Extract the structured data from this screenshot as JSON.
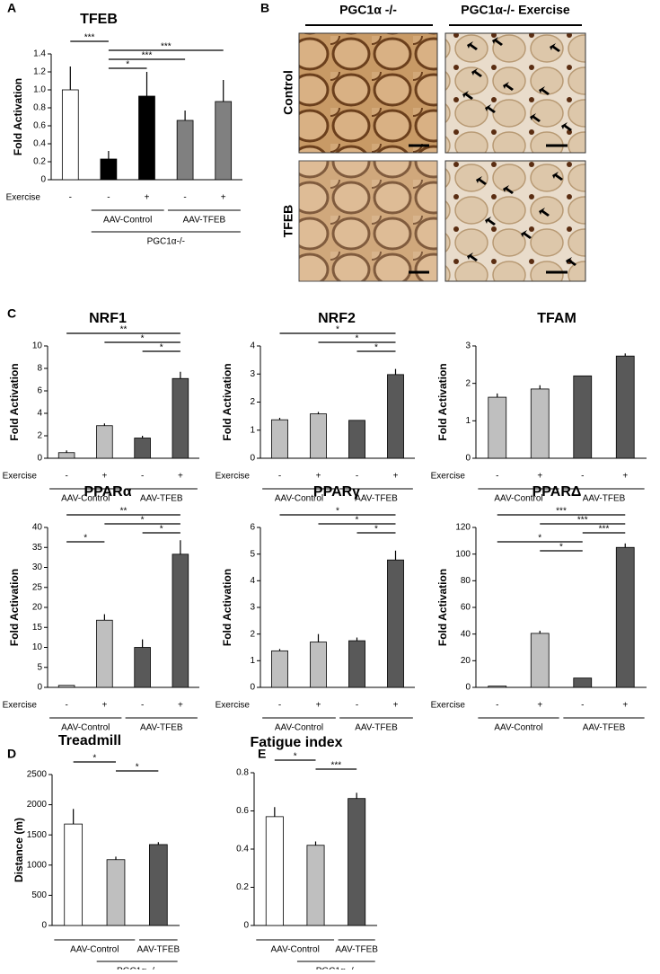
{
  "panel_labels": [
    "A",
    "B",
    "C",
    "D",
    "E"
  ],
  "panel_b": {
    "columns": [
      "PGC1α -/-",
      "PGC1α-/- Exercise"
    ],
    "rows": [
      "Control",
      "TFEB"
    ]
  },
  "chart_data": [
    {
      "type": "bar",
      "title": "TFEB",
      "y_label": "Fold Activation",
      "row_label": "Exercise",
      "categories": [
        "-",
        "-",
        "+",
        "-",
        "+"
      ],
      "values": [
        1.0,
        0.23,
        0.93,
        0.66,
        0.87
      ],
      "errors": [
        0.26,
        0.09,
        0.27,
        0.11,
        0.24
      ],
      "colors": [
        "#ffffff",
        "#000000",
        "#000000",
        "#808080",
        "#808080"
      ],
      "ylim": [
        0,
        1.4
      ],
      "yticks": [
        0,
        0.2,
        0.4,
        0.6,
        0.8,
        {
          "value": 1,
          "label": "1.0"
        },
        1.2,
        1.4
      ],
      "groups": [
        {
          "label": "AAV-Control",
          "span": [
            1,
            2
          ],
          "level": 1
        },
        {
          "label": "AAV-TFEB",
          "span": [
            3,
            4
          ],
          "level": 1
        },
        {
          "label": "PGC1α-/-",
          "span": [
            1,
            4
          ],
          "level": 2
        }
      ],
      "significance": [
        {
          "label": "***",
          "span": [
            0,
            1
          ]
        },
        {
          "label": "***",
          "span": [
            1,
            4
          ]
        },
        {
          "label": "***",
          "span": [
            1,
            3
          ]
        },
        {
          "label": "*",
          "span": [
            1,
            2
          ]
        }
      ]
    },
    {
      "type": "bar",
      "title": "NRF1",
      "y_label": "Fold Activation",
      "row_label": "Exercise",
      "categories": [
        "-",
        "+",
        "-",
        "+"
      ],
      "values": [
        0.5,
        2.9,
        1.8,
        7.1
      ],
      "errors": [
        0.2,
        0.2,
        0.2,
        0.6
      ],
      "colors": [
        "#bfbfbf",
        "#bfbfbf",
        "#595959",
        "#595959"
      ],
      "ylim": [
        0,
        10
      ],
      "yticks": [
        0,
        2,
        4,
        6,
        8,
        10
      ],
      "groups": [
        {
          "label": "AAV-Control",
          "span": [
            0,
            1
          ],
          "level": 1
        },
        {
          "label": "AAV-TFEB",
          "span": [
            2,
            3
          ],
          "level": 1
        }
      ],
      "significance": [
        {
          "label": "**",
          "span": [
            0,
            3
          ]
        },
        {
          "label": "*",
          "span": [
            1,
            3
          ]
        },
        {
          "label": "*",
          "span": [
            2,
            3
          ]
        }
      ]
    },
    {
      "type": "bar",
      "title": "NRF2",
      "y_label": "Fold Activation",
      "row_label": "Exercise",
      "categories": [
        "-",
        "+",
        "-",
        "+"
      ],
      "values": [
        1.37,
        1.58,
        1.35,
        2.98
      ],
      "errors": [
        0.07,
        0.07,
        0,
        0.2
      ],
      "colors": [
        "#bfbfbf",
        "#bfbfbf",
        "#595959",
        "#595959"
      ],
      "ylim": [
        0,
        4
      ],
      "yticks": [
        0,
        1,
        2,
        3,
        4
      ],
      "groups": [
        {
          "label": "AAV-Control",
          "span": [
            0,
            1
          ],
          "level": 1
        },
        {
          "label": "AAV-TFEB",
          "span": [
            2,
            3
          ],
          "level": 1
        }
      ],
      "significance": [
        {
          "label": "*",
          "span": [
            0,
            3
          ]
        },
        {
          "label": "*",
          "span": [
            1,
            3
          ]
        },
        {
          "label": "*",
          "span": [
            2,
            3
          ]
        }
      ]
    },
    {
      "type": "bar",
      "title": "TFAM",
      "y_label": "Fold Activation",
      "row_label": "Exercise",
      "categories": [
        "-",
        "+",
        "-",
        "+"
      ],
      "values": [
        1.63,
        1.85,
        2.2,
        2.73
      ],
      "errors": [
        0.1,
        0.1,
        0,
        0.07
      ],
      "colors": [
        "#bfbfbf",
        "#bfbfbf",
        "#595959",
        "#595959"
      ],
      "ylim": [
        0,
        3
      ],
      "yticks": [
        0,
        1,
        2,
        3
      ],
      "groups": [
        {
          "label": "AAV-Control",
          "span": [
            0,
            1
          ],
          "level": 1
        },
        {
          "label": "AAV-TFEB",
          "span": [
            2,
            3
          ],
          "level": 1
        }
      ],
      "significance": []
    },
    {
      "type": "bar",
      "title": "PPARα",
      "y_label": "Fold Activation",
      "row_label": "Exercise",
      "categories": [
        "-",
        "+",
        "-",
        "+"
      ],
      "values": [
        0.5,
        16.8,
        10,
        33.3
      ],
      "errors": [
        0,
        1.5,
        2,
        3.5
      ],
      "colors": [
        "#bfbfbf",
        "#bfbfbf",
        "#595959",
        "#595959"
      ],
      "ylim": [
        0,
        40
      ],
      "yticks": [
        0,
        5,
        10,
        15,
        20,
        25,
        30,
        35,
        40
      ],
      "groups": [
        {
          "label": "AAV-Control",
          "span": [
            0,
            1
          ],
          "level": 1
        },
        {
          "label": "AAV-TFEB",
          "span": [
            2,
            3
          ],
          "level": 1
        }
      ],
      "significance": [
        {
          "label": "**",
          "span": [
            0,
            3
          ]
        },
        {
          "label": "*",
          "span": [
            1,
            3
          ]
        },
        {
          "label": "*",
          "span": [
            2,
            3
          ]
        },
        {
          "label": "*",
          "span": [
            0,
            1
          ]
        }
      ]
    },
    {
      "type": "bar",
      "title": "PPARγ",
      "y_label": "Fold Activation",
      "row_label": "Exercise",
      "categories": [
        "-",
        "+",
        "-",
        "+"
      ],
      "values": [
        1.37,
        1.7,
        1.75,
        4.78
      ],
      "errors": [
        0.07,
        0.3,
        0.12,
        0.35
      ],
      "colors": [
        "#bfbfbf",
        "#bfbfbf",
        "#595959",
        "#595959"
      ],
      "ylim": [
        0,
        6
      ],
      "yticks": [
        0,
        1,
        2,
        3,
        4,
        5,
        6
      ],
      "groups": [
        {
          "label": "AAV-Control",
          "span": [
            0,
            1
          ],
          "level": 1
        },
        {
          "label": "AAV-TFEB",
          "span": [
            2,
            3
          ],
          "level": 1
        }
      ],
      "significance": [
        {
          "label": "*",
          "span": [
            0,
            3
          ]
        },
        {
          "label": "*",
          "span": [
            1,
            3
          ]
        },
        {
          "label": "*",
          "span": [
            2,
            3
          ]
        }
      ]
    },
    {
      "type": "bar",
      "title": "PPARΔ",
      "y_label": "Fold Activation",
      "row_label": "Exercise",
      "categories": [
        "-",
        "+",
        "-",
        "+"
      ],
      "values": [
        1,
        40.5,
        7,
        105
      ],
      "errors": [
        0,
        2,
        0,
        3
      ],
      "colors": [
        "#bfbfbf",
        "#bfbfbf",
        "#595959",
        "#595959"
      ],
      "ylim": [
        0,
        120
      ],
      "yticks": [
        0,
        20,
        40,
        60,
        80,
        100,
        120
      ],
      "groups": [
        {
          "label": "AAV-Control",
          "span": [
            0,
            1
          ],
          "level": 1
        },
        {
          "label": "AAV-TFEB",
          "span": [
            2,
            3
          ],
          "level": 1
        }
      ],
      "significance": [
        {
          "label": "***",
          "span": [
            0,
            3
          ]
        },
        {
          "label": "***",
          "span": [
            1,
            3
          ]
        },
        {
          "label": "***",
          "span": [
            2,
            3
          ]
        },
        {
          "label": "*",
          "span": [
            0,
            2
          ]
        },
        {
          "label": "*",
          "span": [
            1,
            2
          ]
        }
      ]
    },
    {
      "type": "bar",
      "title": "Treadmill",
      "y_label": "Distance (m)",
      "categories": [
        null,
        null,
        null
      ],
      "values": [
        1680,
        1090,
        1340
      ],
      "errors": [
        250,
        50,
        40
      ],
      "colors": [
        "#ffffff",
        "#bfbfbf",
        "#595959"
      ],
      "ylim": [
        0,
        2500
      ],
      "yticks": [
        0,
        500,
        1000,
        1500,
        2000,
        2500
      ],
      "groups": [
        {
          "label": "AAV-Control",
          "span": [
            0,
            1
          ],
          "level": 1
        },
        {
          "label": "AAV-TFEB",
          "span": [
            2,
            2
          ],
          "level": 1
        },
        {
          "label": "PGC1α -/-",
          "span": [
            1,
            2
          ],
          "level": 2
        }
      ],
      "significance": [
        {
          "label": "*",
          "span": [
            0,
            1
          ]
        },
        {
          "label": "*",
          "span": [
            1,
            2
          ]
        }
      ]
    },
    {
      "type": "bar",
      "title": "Fatigue index",
      "categories": [
        null,
        null,
        null
      ],
      "values": [
        0.57,
        0.42,
        0.665
      ],
      "errors": [
        0.05,
        0.02,
        0.03
      ],
      "colors": [
        "#ffffff",
        "#bfbfbf",
        "#595959"
      ],
      "ylim": [
        0,
        0.8
      ],
      "yticks": [
        0,
        0.2,
        0.4,
        0.6,
        0.8
      ],
      "groups": [
        {
          "label": "AAV-Control",
          "span": [
            0,
            1
          ],
          "level": 1
        },
        {
          "label": "AAV-TFEB",
          "span": [
            2,
            2
          ],
          "level": 1
        },
        {
          "label": "PGC1α -/-",
          "span": [
            1,
            2
          ],
          "level": 2
        }
      ],
      "significance": [
        {
          "label": "*",
          "span": [
            0,
            1
          ]
        },
        {
          "label": "***",
          "span": [
            1,
            2
          ]
        }
      ]
    }
  ]
}
